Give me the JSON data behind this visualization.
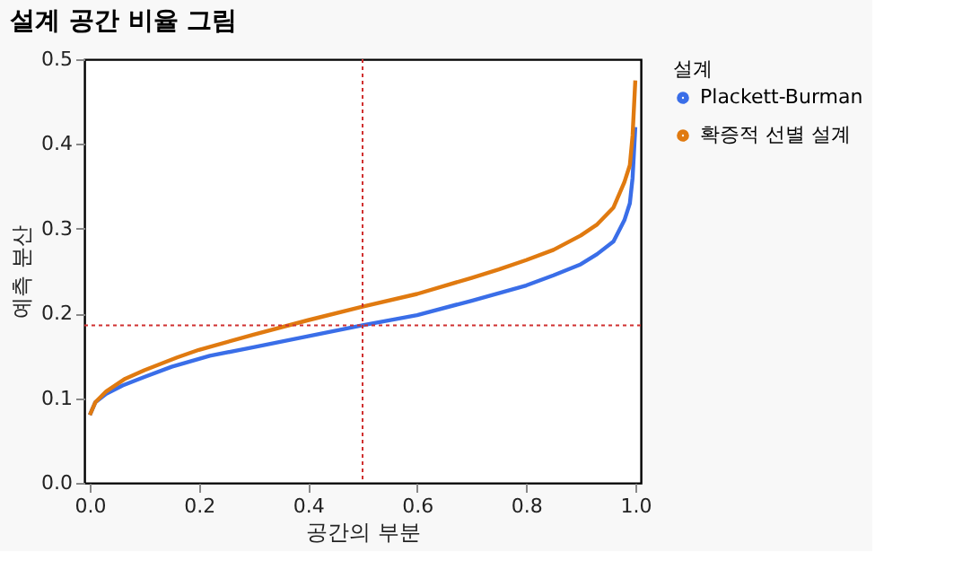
{
  "chart_data": {
    "type": "line",
    "title": "설계 공간 비율 그림",
    "xlabel": "공간의 부분",
    "ylabel": "예측 분산",
    "legend_title": "설계",
    "series": [
      {
        "name": "Plackett-Burman",
        "color": "#3a6ee8",
        "x": [
          0,
          0.01,
          0.03,
          0.06,
          0.1,
          0.15,
          0.22,
          0.3,
          0.4,
          0.5,
          0.6,
          0.7,
          0.8,
          0.85,
          0.9,
          0.93,
          0.96,
          0.98,
          0.99,
          0.995,
          1.0
        ],
        "values": [
          0.08,
          0.095,
          0.105,
          0.115,
          0.125,
          0.137,
          0.15,
          0.16,
          0.173,
          0.186,
          0.198,
          0.215,
          0.233,
          0.245,
          0.258,
          0.27,
          0.285,
          0.31,
          0.33,
          0.36,
          0.42
        ]
      },
      {
        "name": "확증적 선별 설계",
        "color": "#e07a10",
        "x": [
          0,
          0.01,
          0.03,
          0.065,
          0.1,
          0.16,
          0.2,
          0.3,
          0.4,
          0.5,
          0.6,
          0.7,
          0.75,
          0.8,
          0.85,
          0.9,
          0.93,
          0.96,
          0.98,
          0.99,
          0.995,
          1.0
        ],
        "values": [
          0.08,
          0.095,
          0.108,
          0.123,
          0.133,
          0.148,
          0.157,
          0.175,
          0.192,
          0.208,
          0.223,
          0.242,
          0.252,
          0.263,
          0.275,
          0.292,
          0.305,
          0.325,
          0.355,
          0.375,
          0.41,
          0.475
        ]
      }
    ],
    "xlim": [
      -0.01,
      1.01
    ],
    "xticks": [
      {
        "value": 0,
        "label": "0.0"
      },
      0.2,
      0.4,
      0.6,
      0.8,
      {
        "value": 1,
        "label": "1.0"
      }
    ],
    "ylim": [
      0,
      0.5
    ],
    "yticks": [
      {
        "value": 0,
        "label": "0.0"
      },
      0.1,
      0.2,
      0.3,
      0.4,
      0.5
    ],
    "ref_lines": [
      {
        "axis": "x",
        "value": 0.5,
        "color": "#d03030",
        "line_style": "dotted"
      },
      {
        "axis": "y",
        "value": 0.186,
        "color": "#d03030",
        "line_style": "dotted"
      }
    ],
    "grid": false,
    "legend": "right",
    "marker": "none",
    "line_style": "solid"
  }
}
